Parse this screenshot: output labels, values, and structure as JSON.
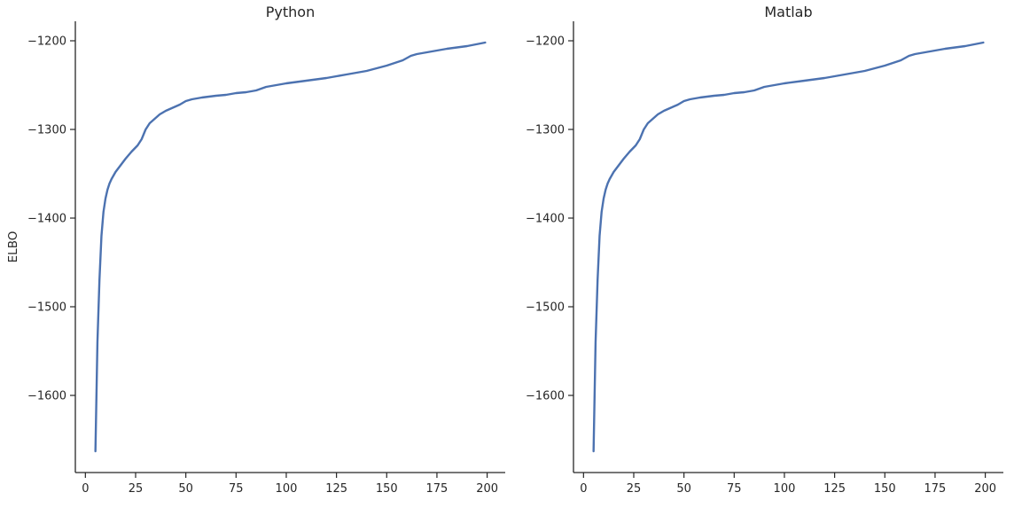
{
  "colors": {
    "line": "#4c72b0",
    "axis": "#262626",
    "text": "#262626",
    "background": "#ffffff"
  },
  "chart_data": [
    {
      "type": "line",
      "title": "Python",
      "xlabel": "",
      "ylabel": "ELBO",
      "xlim": [
        -5,
        209
      ],
      "ylim": [
        -1687,
        -1178
      ],
      "xticks": [
        0,
        25,
        50,
        75,
        100,
        125,
        150,
        175,
        200
      ],
      "yticks": [
        -1200,
        -1300,
        -1400,
        -1500,
        -1600
      ],
      "grid": false,
      "series": [
        {
          "x": [
            5,
            6,
            7,
            8,
            9,
            10,
            11,
            12,
            13,
            14,
            15,
            16,
            18,
            20,
            23,
            26,
            28,
            30,
            32,
            34,
            37,
            40,
            43,
            47,
            50,
            53,
            58,
            65,
            70,
            75,
            80,
            85,
            90,
            100,
            110,
            120,
            130,
            140,
            150,
            158,
            162,
            165,
            170,
            180,
            190,
            199
          ],
          "y": [
            -1663,
            -1540,
            -1470,
            -1420,
            -1393,
            -1378,
            -1368,
            -1361,
            -1356,
            -1352,
            -1348,
            -1345,
            -1339,
            -1333,
            -1325,
            -1318,
            -1311,
            -1300,
            -1293,
            -1289,
            -1283,
            -1279,
            -1276,
            -1272,
            -1268,
            -1266,
            -1264,
            -1262,
            -1261,
            -1259,
            -1258,
            -1256,
            -1252,
            -1248,
            -1245,
            -1242,
            -1238,
            -1234,
            -1228,
            -1222,
            -1217,
            -1215,
            -1213,
            -1209,
            -1206,
            -1202
          ]
        }
      ]
    },
    {
      "type": "line",
      "title": "Matlab",
      "xlabel": "",
      "ylabel": "",
      "xlim": [
        -5,
        209
      ],
      "ylim": [
        -1687,
        -1178
      ],
      "xticks": [
        0,
        25,
        50,
        75,
        100,
        125,
        150,
        175,
        200
      ],
      "yticks": [
        -1200,
        -1300,
        -1400,
        -1500,
        -1600
      ],
      "grid": false,
      "series": [
        {
          "x": [
            5,
            6,
            7,
            8,
            9,
            10,
            11,
            12,
            13,
            14,
            15,
            16,
            18,
            20,
            23,
            26,
            28,
            30,
            32,
            34,
            37,
            40,
            43,
            47,
            50,
            53,
            58,
            65,
            70,
            75,
            80,
            85,
            90,
            100,
            110,
            120,
            130,
            140,
            150,
            158,
            162,
            165,
            170,
            180,
            190,
            199
          ],
          "y": [
            -1663,
            -1540,
            -1470,
            -1420,
            -1393,
            -1378,
            -1368,
            -1361,
            -1356,
            -1352,
            -1348,
            -1345,
            -1339,
            -1333,
            -1325,
            -1318,
            -1311,
            -1300,
            -1293,
            -1289,
            -1283,
            -1279,
            -1276,
            -1272,
            -1268,
            -1266,
            -1264,
            -1262,
            -1261,
            -1259,
            -1258,
            -1256,
            -1252,
            -1248,
            -1245,
            -1242,
            -1238,
            -1234,
            -1228,
            -1222,
            -1217,
            -1215,
            -1213,
            -1209,
            -1206,
            -1202
          ]
        }
      ]
    }
  ]
}
